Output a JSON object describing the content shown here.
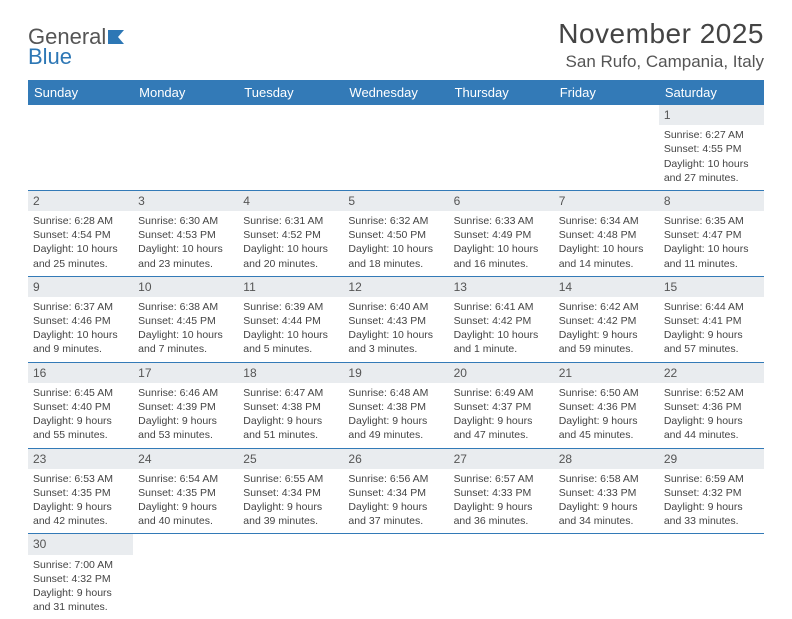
{
  "brand": {
    "part1": "General",
    "part2": "Blue"
  },
  "title": "November 2025",
  "location": "San Rufo, Campania, Italy",
  "weekday_labels": [
    "Sunday",
    "Monday",
    "Tuesday",
    "Wednesday",
    "Thursday",
    "Friday",
    "Saturday"
  ],
  "colors": {
    "header_bg": "#337ab7",
    "header_text": "#ffffff",
    "daynum_bg": "#e9ecef",
    "row_border": "#337ab7",
    "brand_blue": "#2d77b5",
    "text": "#444444"
  },
  "weeks": [
    [
      {
        "n": "",
        "sunrise": "",
        "sunset": "",
        "daylight": "",
        "empty": true
      },
      {
        "n": "",
        "sunrise": "",
        "sunset": "",
        "daylight": "",
        "empty": true
      },
      {
        "n": "",
        "sunrise": "",
        "sunset": "",
        "daylight": "",
        "empty": true
      },
      {
        "n": "",
        "sunrise": "",
        "sunset": "",
        "daylight": "",
        "empty": true
      },
      {
        "n": "",
        "sunrise": "",
        "sunset": "",
        "daylight": "",
        "empty": true
      },
      {
        "n": "",
        "sunrise": "",
        "sunset": "",
        "daylight": "",
        "empty": true
      },
      {
        "n": "1",
        "sunrise": "Sunrise: 6:27 AM",
        "sunset": "Sunset: 4:55 PM",
        "daylight": "Daylight: 10 hours and 27 minutes."
      }
    ],
    [
      {
        "n": "2",
        "sunrise": "Sunrise: 6:28 AM",
        "sunset": "Sunset: 4:54 PM",
        "daylight": "Daylight: 10 hours and 25 minutes."
      },
      {
        "n": "3",
        "sunrise": "Sunrise: 6:30 AM",
        "sunset": "Sunset: 4:53 PM",
        "daylight": "Daylight: 10 hours and 23 minutes."
      },
      {
        "n": "4",
        "sunrise": "Sunrise: 6:31 AM",
        "sunset": "Sunset: 4:52 PM",
        "daylight": "Daylight: 10 hours and 20 minutes."
      },
      {
        "n": "5",
        "sunrise": "Sunrise: 6:32 AM",
        "sunset": "Sunset: 4:50 PM",
        "daylight": "Daylight: 10 hours and 18 minutes."
      },
      {
        "n": "6",
        "sunrise": "Sunrise: 6:33 AM",
        "sunset": "Sunset: 4:49 PM",
        "daylight": "Daylight: 10 hours and 16 minutes."
      },
      {
        "n": "7",
        "sunrise": "Sunrise: 6:34 AM",
        "sunset": "Sunset: 4:48 PM",
        "daylight": "Daylight: 10 hours and 14 minutes."
      },
      {
        "n": "8",
        "sunrise": "Sunrise: 6:35 AM",
        "sunset": "Sunset: 4:47 PM",
        "daylight": "Daylight: 10 hours and 11 minutes."
      }
    ],
    [
      {
        "n": "9",
        "sunrise": "Sunrise: 6:37 AM",
        "sunset": "Sunset: 4:46 PM",
        "daylight": "Daylight: 10 hours and 9 minutes."
      },
      {
        "n": "10",
        "sunrise": "Sunrise: 6:38 AM",
        "sunset": "Sunset: 4:45 PM",
        "daylight": "Daylight: 10 hours and 7 minutes."
      },
      {
        "n": "11",
        "sunrise": "Sunrise: 6:39 AM",
        "sunset": "Sunset: 4:44 PM",
        "daylight": "Daylight: 10 hours and 5 minutes."
      },
      {
        "n": "12",
        "sunrise": "Sunrise: 6:40 AM",
        "sunset": "Sunset: 4:43 PM",
        "daylight": "Daylight: 10 hours and 3 minutes."
      },
      {
        "n": "13",
        "sunrise": "Sunrise: 6:41 AM",
        "sunset": "Sunset: 4:42 PM",
        "daylight": "Daylight: 10 hours and 1 minute."
      },
      {
        "n": "14",
        "sunrise": "Sunrise: 6:42 AM",
        "sunset": "Sunset: 4:42 PM",
        "daylight": "Daylight: 9 hours and 59 minutes."
      },
      {
        "n": "15",
        "sunrise": "Sunrise: 6:44 AM",
        "sunset": "Sunset: 4:41 PM",
        "daylight": "Daylight: 9 hours and 57 minutes."
      }
    ],
    [
      {
        "n": "16",
        "sunrise": "Sunrise: 6:45 AM",
        "sunset": "Sunset: 4:40 PM",
        "daylight": "Daylight: 9 hours and 55 minutes."
      },
      {
        "n": "17",
        "sunrise": "Sunrise: 6:46 AM",
        "sunset": "Sunset: 4:39 PM",
        "daylight": "Daylight: 9 hours and 53 minutes."
      },
      {
        "n": "18",
        "sunrise": "Sunrise: 6:47 AM",
        "sunset": "Sunset: 4:38 PM",
        "daylight": "Daylight: 9 hours and 51 minutes."
      },
      {
        "n": "19",
        "sunrise": "Sunrise: 6:48 AM",
        "sunset": "Sunset: 4:38 PM",
        "daylight": "Daylight: 9 hours and 49 minutes."
      },
      {
        "n": "20",
        "sunrise": "Sunrise: 6:49 AM",
        "sunset": "Sunset: 4:37 PM",
        "daylight": "Daylight: 9 hours and 47 minutes."
      },
      {
        "n": "21",
        "sunrise": "Sunrise: 6:50 AM",
        "sunset": "Sunset: 4:36 PM",
        "daylight": "Daylight: 9 hours and 45 minutes."
      },
      {
        "n": "22",
        "sunrise": "Sunrise: 6:52 AM",
        "sunset": "Sunset: 4:36 PM",
        "daylight": "Daylight: 9 hours and 44 minutes."
      }
    ],
    [
      {
        "n": "23",
        "sunrise": "Sunrise: 6:53 AM",
        "sunset": "Sunset: 4:35 PM",
        "daylight": "Daylight: 9 hours and 42 minutes."
      },
      {
        "n": "24",
        "sunrise": "Sunrise: 6:54 AM",
        "sunset": "Sunset: 4:35 PM",
        "daylight": "Daylight: 9 hours and 40 minutes."
      },
      {
        "n": "25",
        "sunrise": "Sunrise: 6:55 AM",
        "sunset": "Sunset: 4:34 PM",
        "daylight": "Daylight: 9 hours and 39 minutes."
      },
      {
        "n": "26",
        "sunrise": "Sunrise: 6:56 AM",
        "sunset": "Sunset: 4:34 PM",
        "daylight": "Daylight: 9 hours and 37 minutes."
      },
      {
        "n": "27",
        "sunrise": "Sunrise: 6:57 AM",
        "sunset": "Sunset: 4:33 PM",
        "daylight": "Daylight: 9 hours and 36 minutes."
      },
      {
        "n": "28",
        "sunrise": "Sunrise: 6:58 AM",
        "sunset": "Sunset: 4:33 PM",
        "daylight": "Daylight: 9 hours and 34 minutes."
      },
      {
        "n": "29",
        "sunrise": "Sunrise: 6:59 AM",
        "sunset": "Sunset: 4:32 PM",
        "daylight": "Daylight: 9 hours and 33 minutes."
      }
    ],
    [
      {
        "n": "30",
        "sunrise": "Sunrise: 7:00 AM",
        "sunset": "Sunset: 4:32 PM",
        "daylight": "Daylight: 9 hours and 31 minutes."
      },
      {
        "n": "",
        "sunrise": "",
        "sunset": "",
        "daylight": "",
        "empty": true
      },
      {
        "n": "",
        "sunrise": "",
        "sunset": "",
        "daylight": "",
        "empty": true
      },
      {
        "n": "",
        "sunrise": "",
        "sunset": "",
        "daylight": "",
        "empty": true
      },
      {
        "n": "",
        "sunrise": "",
        "sunset": "",
        "daylight": "",
        "empty": true
      },
      {
        "n": "",
        "sunrise": "",
        "sunset": "",
        "daylight": "",
        "empty": true
      },
      {
        "n": "",
        "sunrise": "",
        "sunset": "",
        "daylight": "",
        "empty": true
      }
    ]
  ]
}
